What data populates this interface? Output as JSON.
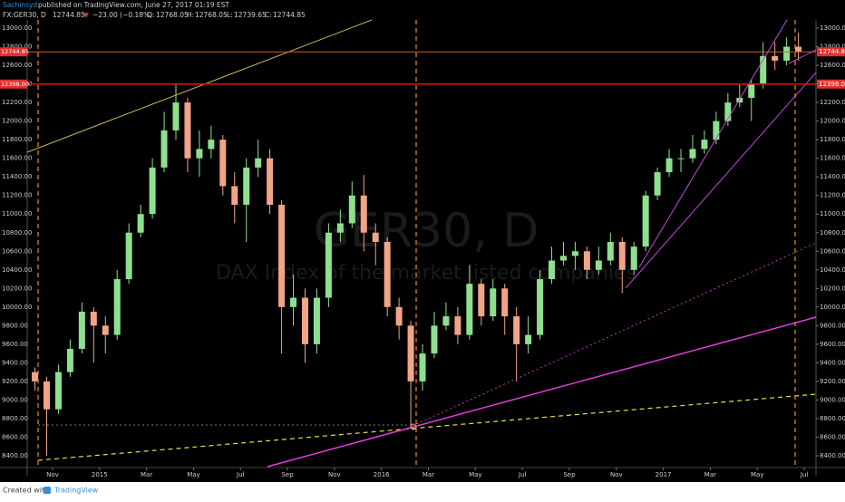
{
  "header": {
    "author": "Sachinsyd",
    "published": "published on TradingView.com, June 27, 2017 01:19 EST",
    "symbol": "FX:GER30, D",
    "last": "12744.85",
    "arrow": "▼",
    "change": "−23.00 (−0.18%)",
    "o_label": "O:",
    "o": "12768.05",
    "h_label": "H:",
    "h": "12768.05",
    "l_label": "L:",
    "l": "12739.65",
    "c_label": "C:",
    "c": "12744.85"
  },
  "watermark": {
    "symbol": "GER30, D",
    "description": "DAX Index of the market listed companies"
  },
  "footer": {
    "created": "Created with",
    "brand": "TradingView"
  },
  "chart_data": {
    "type": "candlestick",
    "up_color": "#8ee08e",
    "down_color": "#f2a487",
    "x": [
      0.25,
      0.75,
      1.25,
      1.75,
      2.25,
      2.75,
      3.25,
      3.75,
      4.25,
      4.75,
      5.25,
      5.75,
      6.25,
      6.75,
      7.25,
      7.75,
      8.25,
      8.75,
      9.25,
      9.75,
      10.25,
      10.75,
      11.25,
      11.75,
      12.25,
      12.75,
      13.25,
      13.75,
      14.25,
      14.75,
      15.25,
      15.75,
      16.25,
      16.75,
      17.25,
      17.75,
      18.25,
      18.75,
      19.25,
      19.75,
      20.25,
      20.75,
      21.25,
      21.75,
      22.25,
      22.75,
      23.25,
      23.75,
      24.25,
      24.75,
      25.25,
      25.75,
      26.25,
      26.75,
      27.25,
      27.75,
      28.25,
      28.75,
      29.25,
      29.75,
      30.25,
      30.75,
      31.25,
      31.75,
      32.25,
      32.75
    ],
    "open": [
      9300,
      9200,
      8900,
      9300,
      9550,
      9950,
      9800,
      9700,
      10300,
      10800,
      11000,
      11500,
      11900,
      12200,
      11600,
      11700,
      11800,
      11300,
      11100,
      11500,
      11600,
      11100,
      10000,
      10100,
      9600,
      10100,
      10800,
      10900,
      11200,
      10800,
      10700,
      10000,
      9800,
      9200,
      9500,
      9800,
      9900,
      9700,
      10250,
      9900,
      10200,
      9900,
      9600,
      9700,
      10300,
      10500,
      10550,
      10600,
      10400,
      10500,
      10700,
      10400,
      10650,
      11200,
      11450,
      11600,
      11600,
      11700,
      11800,
      12000,
      12200,
      12250,
      12400,
      12700,
      12650,
      12800
    ],
    "high": [
      9350,
      9250,
      9380,
      9650,
      10050,
      10000,
      9900,
      10400,
      10900,
      11100,
      11600,
      12100,
      12390,
      12250,
      11900,
      11950,
      11850,
      11450,
      11600,
      11800,
      11700,
      11150,
      10350,
      10200,
      10200,
      10900,
      11050,
      11350,
      11420,
      10900,
      10750,
      10100,
      9850,
      9600,
      9950,
      10050,
      10000,
      10450,
      10300,
      10300,
      10250,
      10000,
      9900,
      10400,
      10650,
      10700,
      10700,
      10650,
      10650,
      10800,
      10750,
      10700,
      11250,
      11500,
      11700,
      11700,
      11850,
      11900,
      12100,
      12300,
      12400,
      12450,
      12850,
      12850,
      12900,
      12950
    ],
    "low": [
      9100,
      8400,
      8850,
      9250,
      9500,
      9400,
      9500,
      9650,
      10250,
      10750,
      10950,
      11450,
      11800,
      11450,
      11400,
      11600,
      11200,
      10900,
      10700,
      11400,
      11000,
      9500,
      9800,
      9400,
      9500,
      10000,
      10700,
      10850,
      10600,
      10450,
      9900,
      9650,
      8700,
      9100,
      9450,
      9750,
      9600,
      9650,
      9800,
      9850,
      9700,
      9200,
      9500,
      9650,
      10250,
      10450,
      10400,
      10300,
      10350,
      10450,
      10150,
      10350,
      10600,
      11150,
      11400,
      11450,
      11550,
      11650,
      11750,
      11950,
      12150,
      12000,
      12350,
      12550,
      12600,
      12650
    ],
    "close": [
      9200,
      8900,
      9300,
      9550,
      9950,
      9800,
      9700,
      10300,
      10800,
      11000,
      11500,
      11900,
      12200,
      11600,
      11700,
      11800,
      11300,
      11100,
      11500,
      11600,
      11100,
      10000,
      10100,
      9600,
      10100,
      10800,
      10900,
      11200,
      10800,
      10700,
      10000,
      9800,
      9200,
      9500,
      9800,
      9900,
      9700,
      10250,
      9900,
      10200,
      9900,
      9600,
      9700,
      10300,
      10500,
      10550,
      10600,
      10400,
      10500,
      10700,
      10400,
      10650,
      11200,
      11450,
      11600,
      11600,
      11700,
      11800,
      12000,
      12200,
      12250,
      12400,
      12700,
      12650,
      12800,
      12745
    ],
    "xlim": [
      -0.08,
      33.5
    ],
    "xticks": [
      {
        "value": 1,
        "label": "Nov"
      },
      {
        "value": 3,
        "label": "2015"
      },
      {
        "value": 5,
        "label": "Mar"
      },
      {
        "value": 7,
        "label": "May"
      },
      {
        "value": 9,
        "label": "Jul"
      },
      {
        "value": 11,
        "label": "Sep"
      },
      {
        "value": 13,
        "label": "Nov"
      },
      {
        "value": 15,
        "label": "2016"
      },
      {
        "value": 17,
        "label": "Mar"
      },
      {
        "value": 19,
        "label": "May"
      },
      {
        "value": 21,
        "label": "Jul"
      },
      {
        "value": 23,
        "label": "Sep"
      },
      {
        "value": 25,
        "label": "Nov"
      },
      {
        "value": 27,
        "label": "2017"
      },
      {
        "value": 29,
        "label": "Mar"
      },
      {
        "value": 31,
        "label": "May"
      },
      {
        "value": 33,
        "label": "Jul"
      }
    ],
    "ylim": [
      8283,
      13088
    ],
    "yticks": [
      {
        "value": 8400,
        "label": "8400.00"
      },
      {
        "value": 8600,
        "label": "8600.00"
      },
      {
        "value": 8800,
        "label": "8800.00"
      },
      {
        "value": 9000,
        "label": "9000.00"
      },
      {
        "value": 9200,
        "label": "9200.00"
      },
      {
        "value": 9400,
        "label": "9400.00"
      },
      {
        "value": 9600,
        "label": "9600.00"
      },
      {
        "value": 9800,
        "label": "9800.00"
      },
      {
        "value": 10000,
        "label": "10000.00"
      },
      {
        "value": 10200,
        "label": "10200.00"
      },
      {
        "value": 10400,
        "label": "10400.00"
      },
      {
        "value": 10600,
        "label": "10600.00"
      },
      {
        "value": 10800,
        "label": "10800.00"
      },
      {
        "value": 11000,
        "label": "11000.00"
      },
      {
        "value": 11200,
        "label": "11200.00"
      },
      {
        "value": 11400,
        "label": "11400.00"
      },
      {
        "value": 11600,
        "label": "11600.00"
      },
      {
        "value": 11800,
        "label": "11800.00"
      },
      {
        "value": 12000,
        "label": "12000.00"
      },
      {
        "value": 12200,
        "label": "12200.00"
      },
      {
        "value": 12400,
        "label": "12400.00"
      },
      {
        "value": 12600,
        "label": "12600.00"
      },
      {
        "value": 12800,
        "label": "12800.00"
      },
      {
        "value": 13000,
        "label": "13000.00"
      }
    ],
    "price_lines": [
      {
        "value": 12744.85,
        "label": "12744.85",
        "color": "#c8602a"
      },
      {
        "value": 12398,
        "label": "12398.00",
        "color": "#e01010"
      }
    ]
  }
}
